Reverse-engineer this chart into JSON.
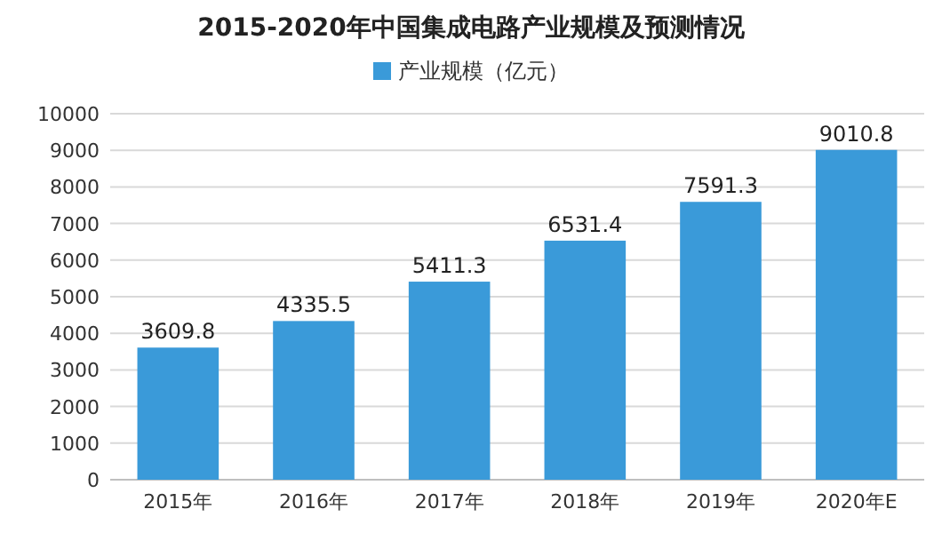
{
  "chart_data": {
    "type": "bar",
    "title": "2015-2020年中国集成电路产业规模及预测情况",
    "categories": [
      "2015年",
      "2016年",
      "2017年",
      "2018年",
      "2019年",
      "2020年E"
    ],
    "series": [
      {
        "name": "产业规模（亿元）",
        "color": "#3a9ad9",
        "values": [
          3609.8,
          4335.5,
          5411.3,
          6531.4,
          7591.3,
          9010.8
        ]
      }
    ],
    "ylim": [
      0,
      10000
    ],
    "yticks": [
      0,
      1000,
      2000,
      3000,
      4000,
      5000,
      6000,
      7000,
      8000,
      9000,
      10000
    ],
    "grid": "y",
    "legend": "top",
    "data_labels": true
  }
}
